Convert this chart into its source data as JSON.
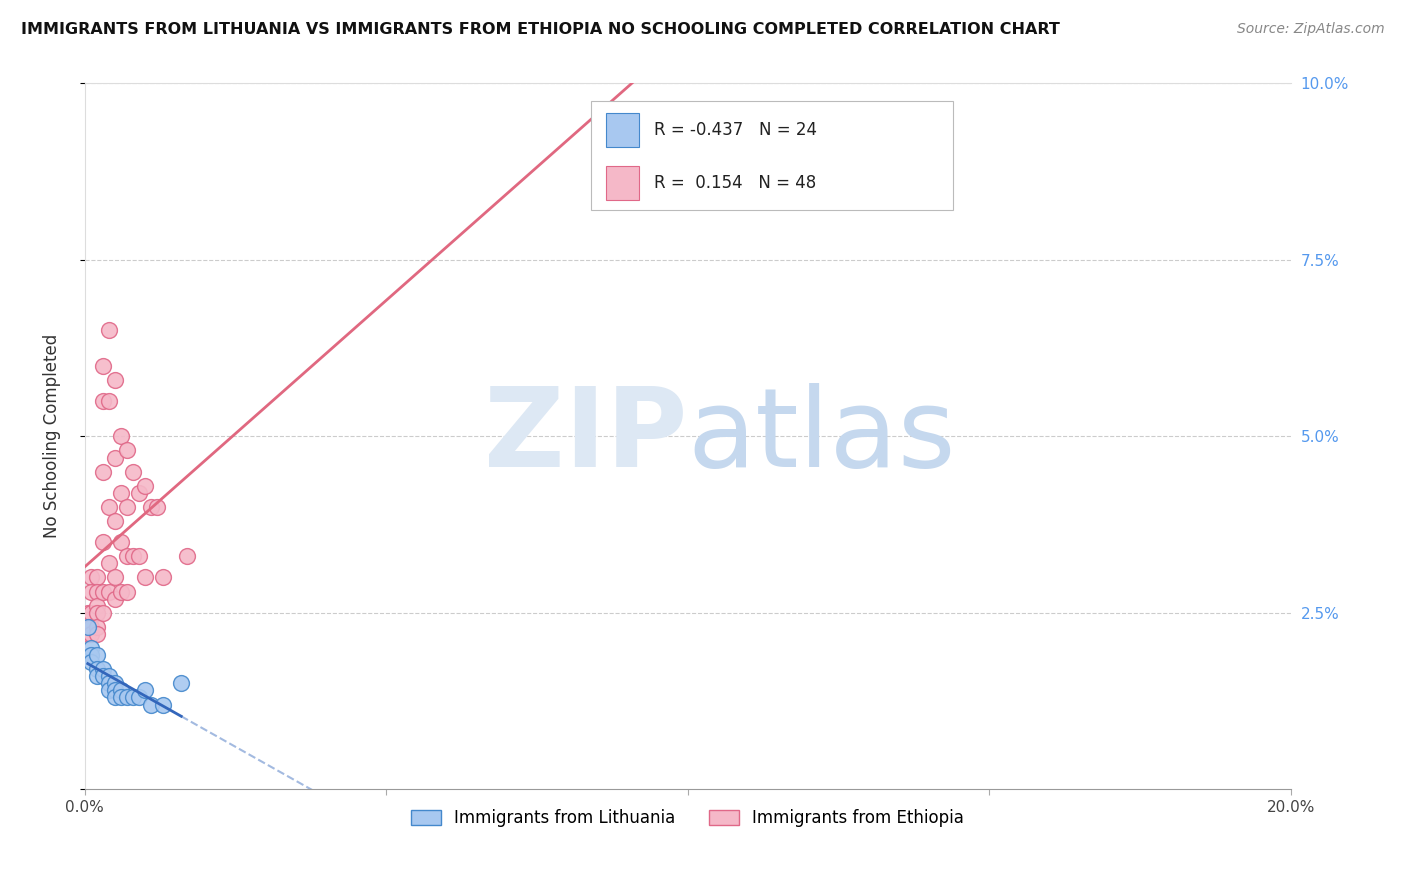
{
  "title": "IMMIGRANTS FROM LITHUANIA VS IMMIGRANTS FROM ETHIOPIA NO SCHOOLING COMPLETED CORRELATION CHART",
  "source": "Source: ZipAtlas.com",
  "ylabel": "No Schooling Completed",
  "xlim": [
    0.0,
    0.2
  ],
  "ylim": [
    0.0,
    0.1
  ],
  "lithuania_color": "#a8c8f0",
  "ethiopia_color": "#f5b8c8",
  "lithuania_edge_color": "#4488cc",
  "ethiopia_edge_color": "#e06888",
  "lithuania_line_color": "#3366bb",
  "ethiopia_line_color": "#e06880",
  "R_lithuania": -0.437,
  "N_lithuania": 24,
  "R_ethiopia": 0.154,
  "N_ethiopia": 48,
  "legend_label_1": "Immigrants from Lithuania",
  "legend_label_2": "Immigrants from Ethiopia",
  "lithuania_x": [
    0.0005,
    0.001,
    0.001,
    0.001,
    0.002,
    0.002,
    0.002,
    0.003,
    0.003,
    0.004,
    0.004,
    0.004,
    0.005,
    0.005,
    0.005,
    0.006,
    0.006,
    0.007,
    0.008,
    0.009,
    0.01,
    0.011,
    0.013,
    0.016
  ],
  "lithuania_y": [
    0.023,
    0.02,
    0.019,
    0.018,
    0.019,
    0.017,
    0.016,
    0.017,
    0.016,
    0.016,
    0.015,
    0.014,
    0.015,
    0.014,
    0.013,
    0.014,
    0.013,
    0.013,
    0.013,
    0.013,
    0.014,
    0.012,
    0.012,
    0.015
  ],
  "ethiopia_x": [
    0.0005,
    0.0005,
    0.0005,
    0.001,
    0.001,
    0.001,
    0.001,
    0.001,
    0.002,
    0.002,
    0.002,
    0.002,
    0.002,
    0.002,
    0.003,
    0.003,
    0.003,
    0.003,
    0.003,
    0.003,
    0.004,
    0.004,
    0.004,
    0.004,
    0.004,
    0.005,
    0.005,
    0.005,
    0.005,
    0.005,
    0.006,
    0.006,
    0.006,
    0.006,
    0.007,
    0.007,
    0.007,
    0.007,
    0.008,
    0.008,
    0.009,
    0.009,
    0.01,
    0.01,
    0.011,
    0.012,
    0.013,
    0.017
  ],
  "ethiopia_y": [
    0.025,
    0.024,
    0.022,
    0.03,
    0.028,
    0.025,
    0.023,
    0.022,
    0.03,
    0.028,
    0.026,
    0.025,
    0.023,
    0.022,
    0.06,
    0.055,
    0.045,
    0.035,
    0.028,
    0.025,
    0.065,
    0.055,
    0.04,
    0.032,
    0.028,
    0.058,
    0.047,
    0.038,
    0.03,
    0.027,
    0.05,
    0.042,
    0.035,
    0.028,
    0.048,
    0.04,
    0.033,
    0.028,
    0.045,
    0.033,
    0.042,
    0.033,
    0.043,
    0.03,
    0.04,
    0.04,
    0.03,
    0.033
  ]
}
